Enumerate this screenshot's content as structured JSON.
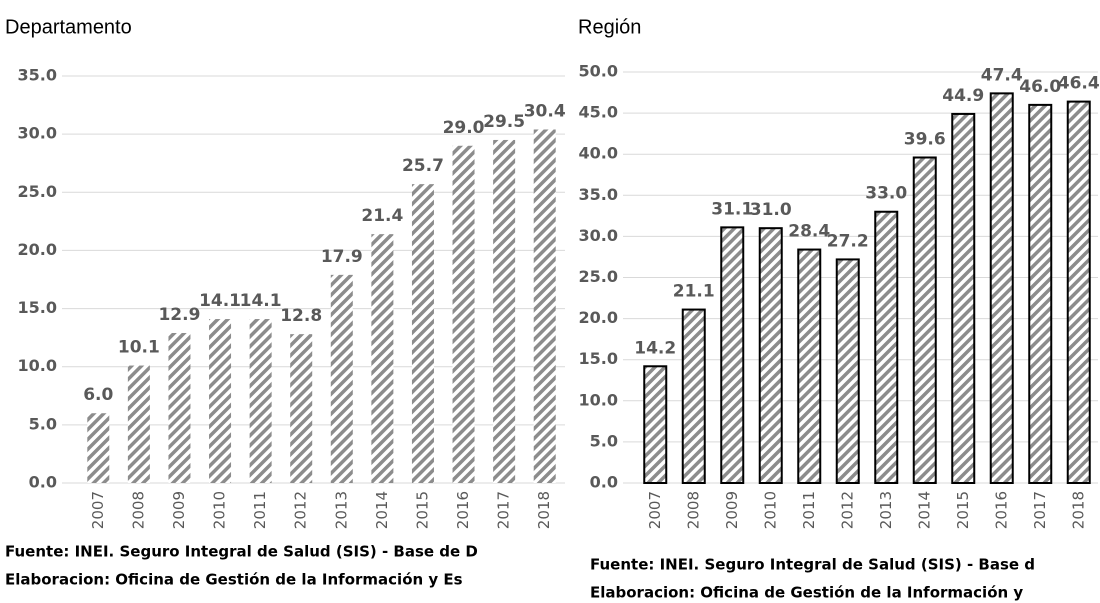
{
  "chart_data": [
    {
      "type": "bar",
      "title": "Departamento",
      "categories": [
        "2007",
        "2008",
        "2009",
        "2010",
        "2011",
        "2012",
        "2013",
        "2014",
        "2015",
        "2016",
        "2017",
        "2018"
      ],
      "values": [
        6.0,
        10.1,
        12.9,
        14.1,
        14.1,
        12.8,
        17.9,
        21.4,
        25.7,
        29.0,
        29.5,
        30.4
      ],
      "value_labels": [
        "6.0",
        "10.1",
        "12.9",
        "14.1",
        "14.1",
        "12.8",
        "17.9",
        "21.4",
        "25.7",
        "29.0",
        "29.5",
        "30.4"
      ],
      "color": "#8c8c8c",
      "ylim": [
        0,
        35
      ],
      "yticks": [
        {
          "value": 0,
          "label": "0.0"
        },
        {
          "value": 5,
          "label": "5.0"
        },
        {
          "value": 10,
          "label": "10.0"
        },
        {
          "value": 15,
          "label": "15.0"
        },
        {
          "value": 20,
          "label": "20.0"
        },
        {
          "value": 25,
          "label": "25.0"
        },
        {
          "value": 30,
          "label": "30.0"
        },
        {
          "value": 35,
          "label": "35.0"
        }
      ],
      "grid": true,
      "source": [
        "Fuente: INEI.  Seguro Integral de Salud (SIS) - Base de D",
        "Elaboracion: Oficina de Gestión de la Información y Es"
      ]
    },
    {
      "type": "bar",
      "title": "Región",
      "categories": [
        "2007",
        "2008",
        "2009",
        "2010",
        "2011",
        "2012",
        "2013",
        "2014",
        "2015",
        "2016",
        "2017",
        "2018"
      ],
      "values": [
        14.2,
        21.1,
        31.1,
        31.0,
        28.4,
        27.2,
        33.0,
        39.6,
        44.9,
        47.4,
        46.0,
        46.4
      ],
      "value_labels": [
        "14.2",
        "21.1",
        "31.1",
        "31.0",
        "28.4",
        "27.2",
        "33.0",
        "39.6",
        "44.9",
        "47.4",
        "46.0",
        "46.4"
      ],
      "color": "#8c8c8c",
      "edgecolor": "#000000",
      "ylim": [
        0,
        50
      ],
      "yticks": [
        {
          "value": 0,
          "label": "0.0"
        },
        {
          "value": 5,
          "label": "5.0"
        },
        {
          "value": 10,
          "label": "10.0"
        },
        {
          "value": 15,
          "label": "15.0"
        },
        {
          "value": 20,
          "label": "20.0"
        },
        {
          "value": 25,
          "label": "25.0"
        },
        {
          "value": 30,
          "label": "30.0"
        },
        {
          "value": 35,
          "label": "35.0"
        },
        {
          "value": 40,
          "label": "40.0"
        },
        {
          "value": 45,
          "label": "45.0"
        },
        {
          "value": 50,
          "label": "50.0"
        }
      ],
      "grid": true,
      "source": [
        "Fuente: INEI.  Seguro Integral de Salud (SIS) - Base d",
        "Elaboracion: Oficina de Gestión de la Información y"
      ]
    }
  ]
}
